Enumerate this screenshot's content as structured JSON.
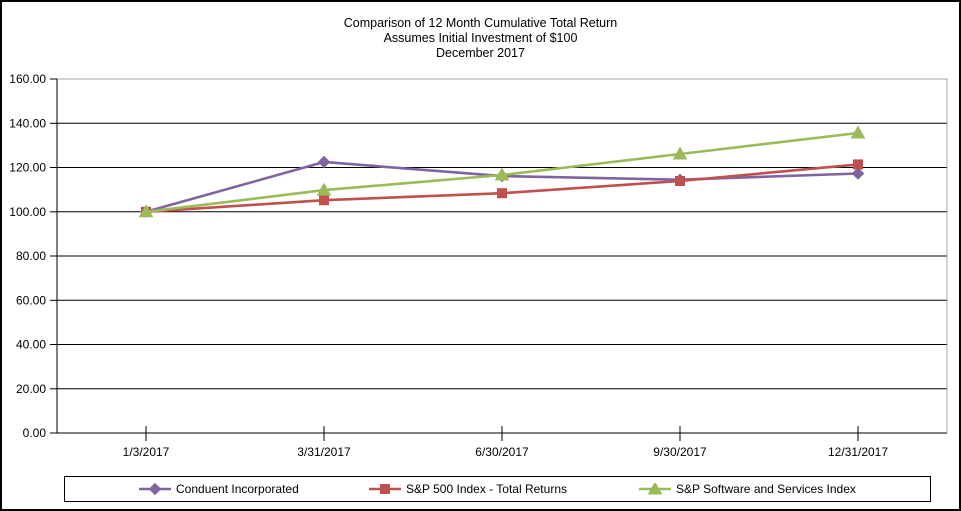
{
  "title": {
    "line1": "Comparison of 12 Month Cumulative Total Return",
    "line2": "Assumes Initial Investment of $100",
    "line3": "December 2017"
  },
  "chart_data": {
    "type": "line",
    "categories": [
      "1/3/2017",
      "3/31/2017",
      "6/30/2017",
      "9/30/2017",
      "12/31/2017"
    ],
    "series": [
      {
        "name": "Conduent Incorporated",
        "color": "#8064A2",
        "marker": "diamond",
        "values": [
          100.0,
          122.5,
          116.1,
          114.5,
          117.3
        ]
      },
      {
        "name": "S&P 500 Index - Total Returns",
        "color": "#C0504D",
        "marker": "square",
        "values": [
          100.0,
          105.2,
          108.4,
          113.9,
          121.4
        ]
      },
      {
        "name": "S&P Software and Services Index",
        "color": "#9BBB59",
        "marker": "triangle",
        "values": [
          100.0,
          109.8,
          116.6,
          126.1,
          135.6
        ]
      }
    ],
    "ylim": [
      0,
      160
    ],
    "ytick_step": 20,
    "ytick_labels": [
      "0.00",
      "20.00",
      "40.00",
      "60.00",
      "80.00",
      "100.00",
      "120.00",
      "140.00",
      "160.00"
    ],
    "grid": true,
    "legend_position": "bottom",
    "axis_color": "#000000",
    "plot_border_color": "#a6a6a6"
  }
}
